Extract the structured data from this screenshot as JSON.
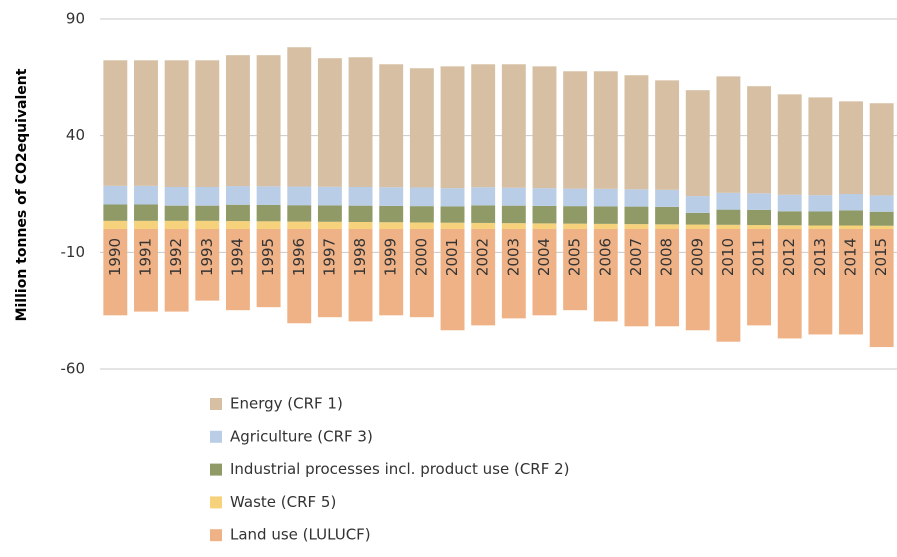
{
  "chart_data": {
    "type": "stacked-bar",
    "y_label": "Million tonnes of CO2equivalent",
    "categories": [
      "1990",
      "1991",
      "1992",
      "1993",
      "1994",
      "1995",
      "1996",
      "1997",
      "1998",
      "1999",
      "2000",
      "2001",
      "2002",
      "2003",
      "2004",
      "2005",
      "2006",
      "2007",
      "2008",
      "2009",
      "2010",
      "2011",
      "2012",
      "2013",
      "2014",
      "2015"
    ],
    "series": [
      {
        "name": "Energy (CRF 1)",
        "color": "#d6bfa3",
        "values": [
          53.8,
          53.8,
          54.3,
          54.3,
          56.1,
          56.2,
          59.7,
          55.1,
          55.6,
          52.7,
          51.1,
          52.2,
          52.7,
          52.9,
          52.2,
          50.3,
          50.4,
          48.9,
          46.9,
          45.4,
          49.9,
          45.9,
          43,
          41.9,
          39.7,
          39.5
        ]
      },
      {
        "name": "Agriculture (CRF 3)",
        "color": "#b9cde6",
        "values": [
          8,
          8,
          8,
          8,
          8,
          8,
          8,
          8,
          8,
          8,
          8,
          7.8,
          7.8,
          7.7,
          7.6,
          7.5,
          7.5,
          7.4,
          7.3,
          7.2,
          7.2,
          7.1,
          7.1,
          7,
          7,
          7
        ]
      },
      {
        "name": "Industrial processes incl. product use (CRF 2)",
        "color": "#8f9a66",
        "values": [
          7,
          7,
          6.5,
          6.5,
          7,
          7,
          7,
          7,
          7,
          7,
          7,
          7,
          7.5,
          7.5,
          7.5,
          7.5,
          7.5,
          7.5,
          7.5,
          5,
          6.5,
          6.5,
          6,
          6,
          6.5,
          6
        ]
      },
      {
        "name": "Waste (CRF 5)",
        "color": "#f6d27c",
        "values": [
          3.5,
          3.5,
          3.5,
          3.5,
          3.4,
          3.3,
          3.2,
          3.1,
          3,
          2.9,
          2.8,
          2.7,
          2.6,
          2.5,
          2.4,
          2.3,
          2.2,
          2.1,
          2,
          1.9,
          1.8,
          1.7,
          1.6,
          1.5,
          1.5,
          1.4
        ]
      },
      {
        "name": "Land use (LULUCF)",
        "color": "#efb287",
        "values": [
          -37,
          -35.4,
          -35.4,
          -30.7,
          -34.8,
          -33.5,
          -40.4,
          -37.8,
          -39.6,
          -37,
          -37.8,
          -43.4,
          -41.3,
          -38.3,
          -37,
          -34.8,
          -39.6,
          -41.7,
          -41.7,
          -43.4,
          -48.3,
          -41.3,
          -46.9,
          -45.2,
          -45.2,
          -50.6
        ]
      }
    ],
    "ylim": [
      -60,
      90
    ],
    "yticks": [
      -60,
      -10,
      40,
      90
    ],
    "grid": true
  }
}
